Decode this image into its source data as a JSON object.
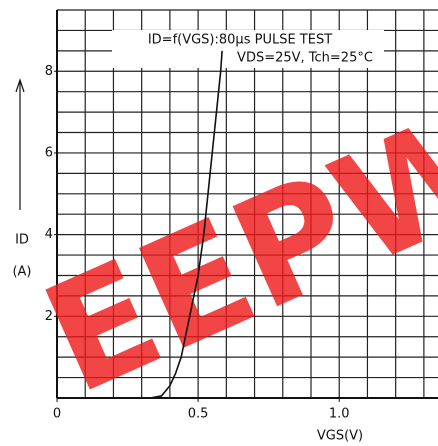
{
  "chart_data": {
    "type": "line",
    "annotations": [
      "ID=f(VGS):80μs PULSE TEST",
      "VDS=25V, Tch=25°C"
    ],
    "ylabel": "ID",
    "yunit": "(A)",
    "xlabel": "VGS(V)",
    "watermark": "EEPW",
    "x": [
      0.33,
      0.37,
      0.4,
      0.42,
      0.44,
      0.47,
      0.5,
      0.52,
      0.55,
      0.58,
      0.585
    ],
    "series": [
      {
        "name": "ID",
        "color": "#111111",
        "values": [
          0,
          0.05,
          0.3,
          0.6,
          1.0,
          2.0,
          3.0,
          4.0,
          6.0,
          8.0,
          8.5
        ]
      }
    ],
    "xlim": [
      0,
      1.35
    ],
    "ylim": [
      0,
      9.5
    ],
    "xticks": [
      0,
      0.5,
      {
        "value": 1.0,
        "label": "1.0"
      }
    ],
    "yticks": [
      2,
      4,
      6,
      8
    ],
    "xgrid": [
      0.1,
      0.2,
      0.3,
      0.4,
      0.5,
      0.6,
      0.7,
      0.8,
      0.9,
      1.0,
      1.1,
      1.2,
      1.3
    ],
    "ygrid": [
      0.5,
      1,
      1.5,
      2,
      2.5,
      3,
      3.5,
      4,
      4.5,
      5,
      5.5,
      6,
      6.5,
      7,
      7.5,
      8,
      8.5,
      9,
      9.5
    ],
    "grid": true
  }
}
